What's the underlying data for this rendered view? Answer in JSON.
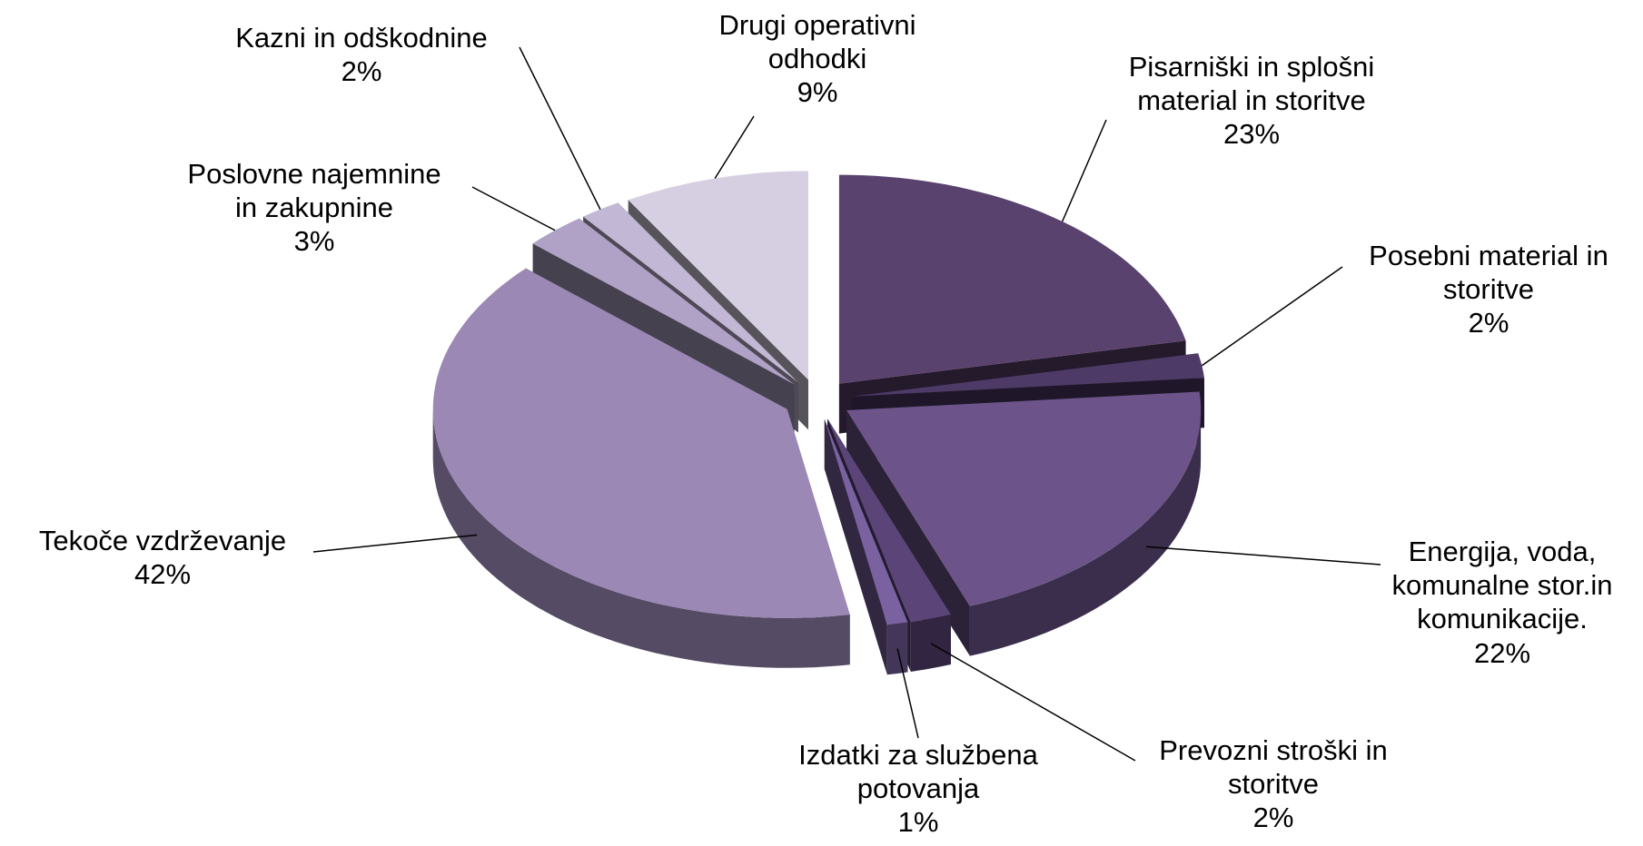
{
  "chart_data": {
    "type": "pie3d",
    "categories": [
      "Pisarniški in splošni material in storitve",
      "Posebni material in storitve",
      "Energija, voda, komunalne stor.in komunikacije.",
      "Prevozni stroški in storitve",
      "Izdatki za službena potovanja",
      "Tekoče vzdrževanje",
      "Poslovne najemnine in zakupnine",
      "Kazni in odškodnine",
      "Drugi operativni odhodki"
    ],
    "values": [
      23,
      2,
      22,
      2,
      1,
      42,
      3,
      2,
      9
    ],
    "value_labels": [
      "23%",
      "2%",
      "22%",
      "2%",
      "1%",
      "42%",
      "3%",
      "2%",
      "9%"
    ],
    "colors": [
      "#5a426e",
      "#4e3a66",
      "#6c548a",
      "#5b4478",
      "#7a62a0",
      "#9b88b5",
      "#b0a2c6",
      "#c2b7d4",
      "#d6cfe2"
    ]
  }
}
